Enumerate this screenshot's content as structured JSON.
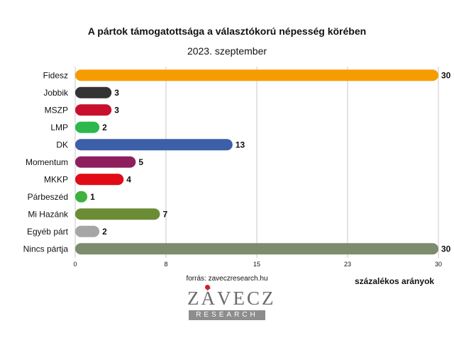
{
  "chart_data": {
    "type": "bar",
    "orientation": "horizontal",
    "title": "A pártok támogatottsága a választókorú népesség körében",
    "subtitle": "2023. szeptember",
    "xlabel": "százalékos arányok",
    "xlim": [
      0,
      30
    ],
    "x_ticks": [
      "0",
      "8",
      "15",
      "23",
      "30"
    ],
    "grid": true,
    "categories": [
      "Fidesz",
      "Jobbik",
      "MSZP",
      "LMP",
      "DK",
      "Momentum",
      "MKKP",
      "Párbeszéd",
      "Mi Hazánk",
      "Egyéb párt",
      "Nincs pártja"
    ],
    "values": [
      30,
      3,
      3,
      2,
      13,
      5,
      4,
      1,
      7,
      2,
      30
    ],
    "colors": [
      "#f59c00",
      "#333333",
      "#c8102e",
      "#2db84d",
      "#3d5fa8",
      "#8e1f5e",
      "#e00b16",
      "#3eb13e",
      "#6b8c34",
      "#a6a6a6",
      "#7c8c6c"
    ]
  },
  "source": "forrás: zaveczresearch.hu",
  "logo": {
    "word": "ZÁVECZ",
    "band": "RESEARCH",
    "accent": "#d21f26"
  }
}
